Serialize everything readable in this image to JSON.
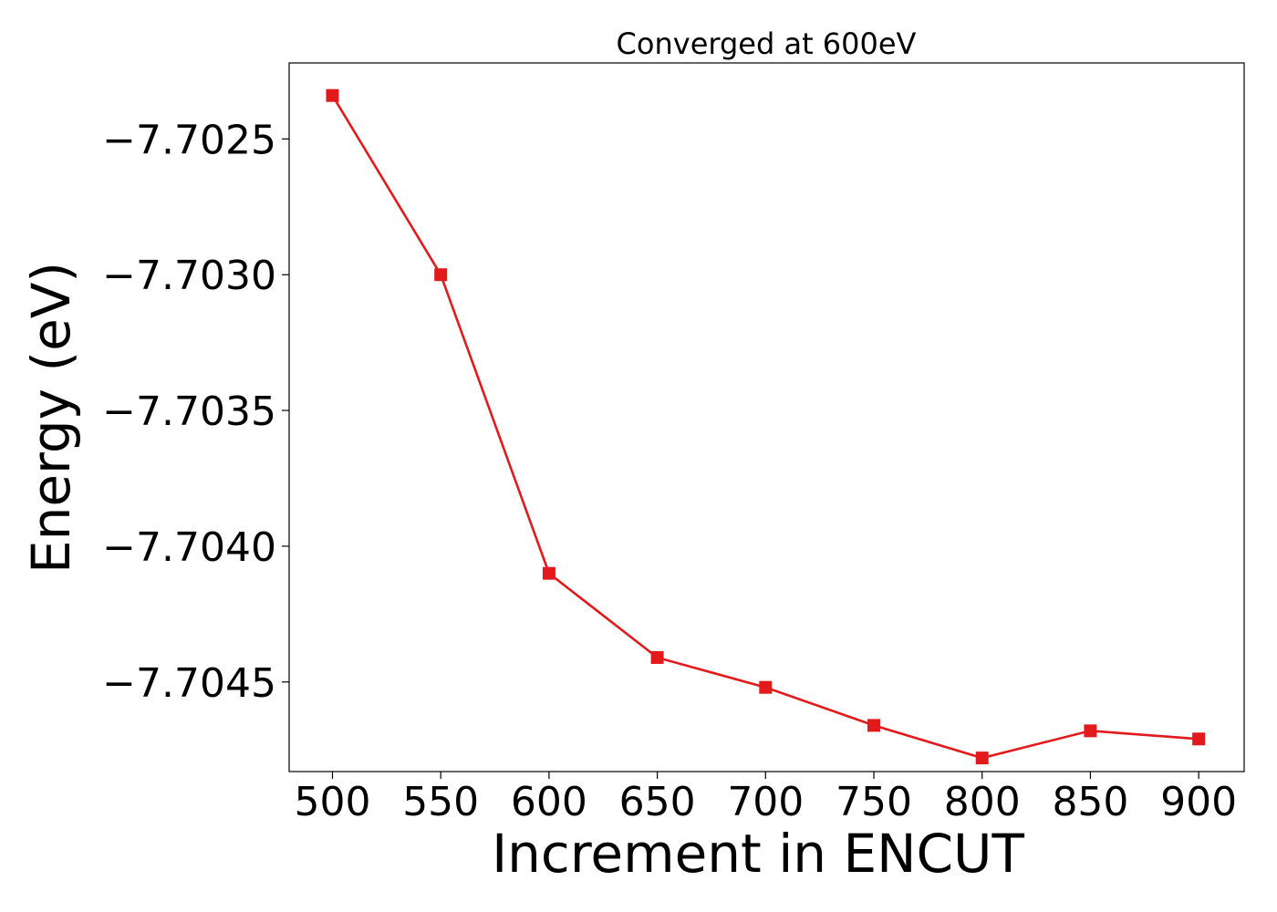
{
  "chart_data": {
    "type": "line",
    "title": "Converged at 600eV",
    "xlabel": "Increment in ENCUT",
    "ylabel": "Energy (eV)",
    "x": [
      500,
      550,
      600,
      650,
      700,
      750,
      800,
      850,
      900
    ],
    "series": [
      {
        "values": [
          -7.70234,
          -7.703,
          -7.7041,
          -7.70441,
          -7.70452,
          -7.70466,
          -7.70478,
          -7.70468,
          -7.70471
        ],
        "color": "#e31a1c",
        "marker": "square"
      }
    ],
    "xticks": [
      500,
      550,
      600,
      650,
      700,
      750,
      800,
      850,
      900
    ],
    "xtick_labels": [
      "500",
      "550",
      "600",
      "650",
      "700",
      "750",
      "800",
      "850",
      "900"
    ],
    "yticks": [
      -7.7025,
      -7.703,
      -7.7035,
      -7.704,
      -7.7045
    ],
    "ytick_labels": [
      "−7.7025",
      "−7.7030",
      "−7.7035",
      "−7.7040",
      "−7.7045"
    ],
    "xlim": [
      480,
      921
    ],
    "ylim": [
      -7.70483,
      -7.70222
    ],
    "grid": false,
    "legend": "none"
  }
}
